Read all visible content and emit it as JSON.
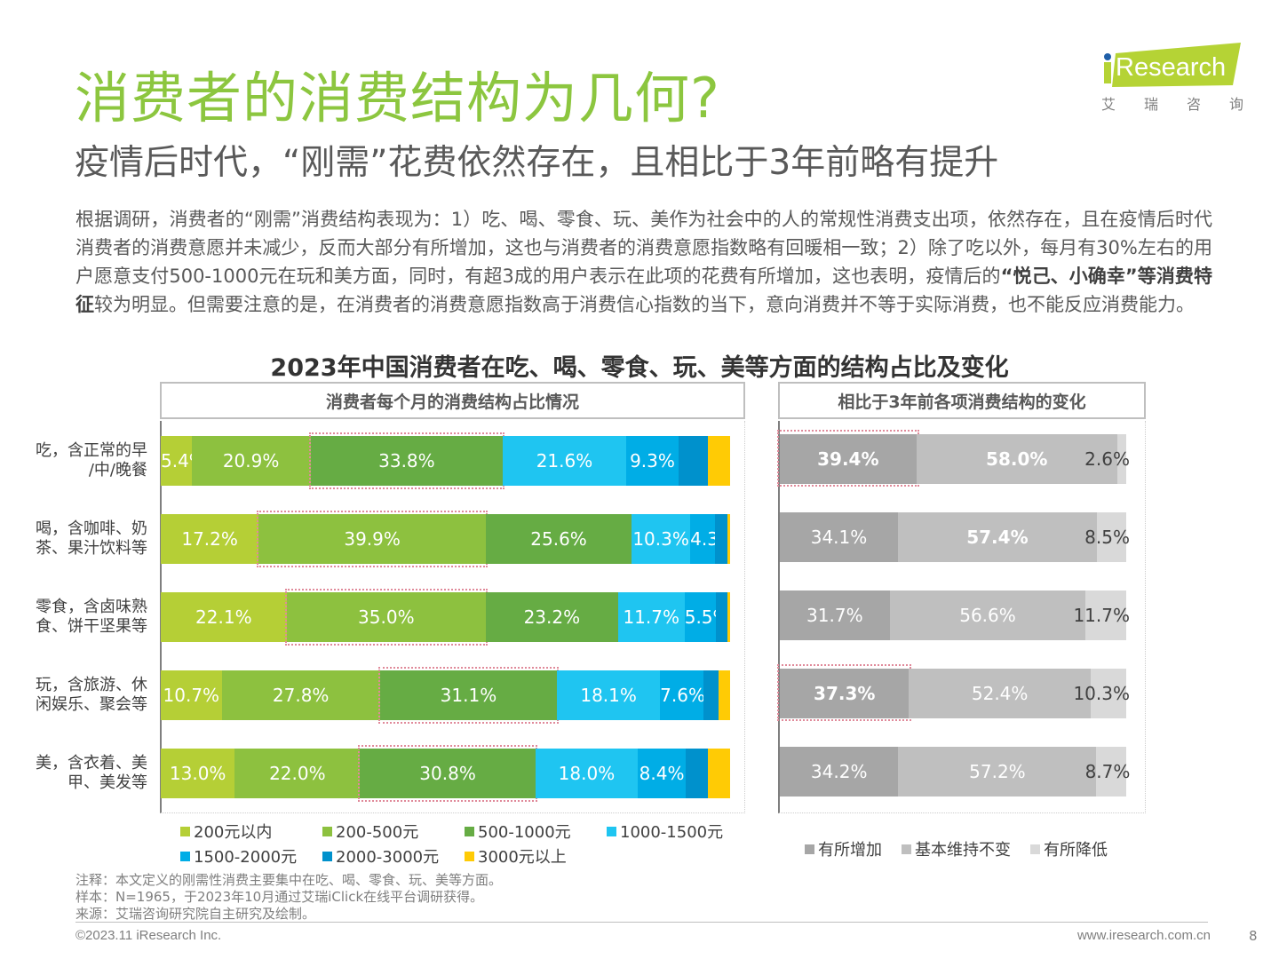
{
  "header": {
    "title": "消费者的消费结构为几何?",
    "subtitle": "疫情后时代，“刚需”花费依然存在，且相比于3年前略有提升",
    "logo_text": "iResearch",
    "logo_cn": [
      "艾",
      "瑞",
      "咨",
      "询"
    ],
    "brand_color": "#B5D335"
  },
  "body": {
    "para_1": "根据调研，消费者的“刚需”消费结构表现为：1）吃、喝、零食、玩、美作为社会中的人的常规性消费支出项，依然存在，且在疫情后时代消费者的消费意愿并未减少，反而大部分有所增加，这也与消费者的消费意愿指数略有回暖相一致；2）除了吃以外，每月有30%左右的用户愿意支付500-1000元在玩和美方面，同时，有超3成的用户表示在此项的花费有所增加，这也表明，疫情后的",
    "para_bold": "“悦己、小确幸”等消费特征",
    "para_2": "较为明显。但需要注意的是，在消费者的消费意愿指数高于消费信心指数的当下，意向消费并不等于实际消费，也不能反应消费能力。"
  },
  "chart_data": [
    {
      "type": "bar",
      "orientation": "horizontal-stacked-100",
      "title": "2023年中国消费者在吃、喝、零食、玩、美等方面的结构占比及变化",
      "panel_title": "消费者每个月的消费结构占比情况",
      "categories": [
        [
          "吃，含正常的早",
          "/中/晚餐"
        ],
        [
          "喝，含咖啡、奶",
          "茶、果汁饮料等"
        ],
        [
          "零食，含卤味熟",
          "食、饼干坚果等"
        ],
        [
          "玩，含旅游、休",
          "闲娱乐、聚会等"
        ],
        [
          "美，含衣着、美",
          "甲、美发等"
        ]
      ],
      "series": [
        {
          "name": "200元以内",
          "color": "#B5CF36",
          "values": [
            5.4,
            17.2,
            22.1,
            10.7,
            13.0
          ],
          "labels": [
            "5.4%",
            "17.2%",
            "22.1%",
            "10.7%",
            "13.0%"
          ]
        },
        {
          "name": "200-500元",
          "color": "#8DC13F",
          "values": [
            20.9,
            39.9,
            35.0,
            27.8,
            22.0
          ],
          "labels": [
            "20.9%",
            "39.9%",
            "35.0%",
            "27.8%",
            "22.0%"
          ]
        },
        {
          "name": "500-1000元",
          "color": "#66AC44",
          "values": [
            33.8,
            25.6,
            23.2,
            31.1,
            30.8
          ],
          "labels": [
            "33.8%",
            "25.6%",
            "23.2%",
            "31.1%",
            "30.8%"
          ]
        },
        {
          "name": "1000-1500元",
          "color": "#1FC5F1",
          "values": [
            21.6,
            10.3,
            11.7,
            18.1,
            18.0
          ],
          "labels": [
            "21.6%",
            "10.3%",
            "11.7%",
            "18.1%",
            "18.0%"
          ]
        },
        {
          "name": "1500-2000元",
          "color": "#00ADE6",
          "values": [
            9.3,
            4.3,
            5.5,
            7.6,
            8.4
          ],
          "labels": [
            "9.3%",
            "4.3%",
            "5.5%",
            "7.6%",
            "8.4%"
          ]
        },
        {
          "name": "2000-3000元",
          "color": "#0091CC",
          "values": [
            5.1,
            2.2,
            2.0,
            2.7,
            3.9
          ],
          "labels": [
            "",
            "",
            "",
            "",
            ""
          ]
        },
        {
          "name": "3000元以上",
          "color": "#FFCB05",
          "values": [
            3.9,
            0.5,
            0.5,
            2.0,
            3.9
          ],
          "labels": [
            "",
            "",
            "",
            "",
            ""
          ]
        }
      ],
      "highlight": [
        2,
        1,
        1,
        2,
        2
      ],
      "xlim": [
        0,
        100
      ],
      "legend_position": "bottom"
    },
    {
      "type": "bar",
      "orientation": "horizontal-stacked-100",
      "panel_title": "相比于3年前各项消费结构的变化",
      "categories": [
        "吃",
        "喝",
        "零食",
        "玩",
        "美"
      ],
      "series": [
        {
          "name": "有所增加",
          "color": "#A6A6A6",
          "values": [
            39.4,
            34.1,
            31.7,
            37.3,
            34.2
          ],
          "bold": [
            true,
            false,
            false,
            true,
            false
          ]
        },
        {
          "name": "基本维持不变",
          "color": "#BFBFBF",
          "values": [
            58.0,
            57.4,
            56.6,
            52.4,
            57.2
          ],
          "bold": [
            true,
            true,
            false,
            false,
            false
          ]
        },
        {
          "name": "有所降低",
          "color": "#D9D9D9",
          "values": [
            2.6,
            8.5,
            11.7,
            10.3,
            8.7
          ],
          "bold": [
            false,
            false,
            false,
            false,
            false
          ]
        }
      ],
      "highlight_rows": [
        0,
        3
      ],
      "xlim": [
        0,
        100
      ],
      "legend_position": "bottom"
    }
  ],
  "footer": {
    "note": "注释：本文定义的刚需性消费主要集中在吃、喝、零食、玩、美等方面。",
    "sample": "样本：N=1965，于2023年10月通过艾瑞iClick在线平台调研获得。",
    "source": "来源：艾瑞咨询研究院自主研究及绘制。",
    "copyright": "©2023.11 iResearch Inc.",
    "website": "www.iresearch.com.cn",
    "page": "8"
  }
}
